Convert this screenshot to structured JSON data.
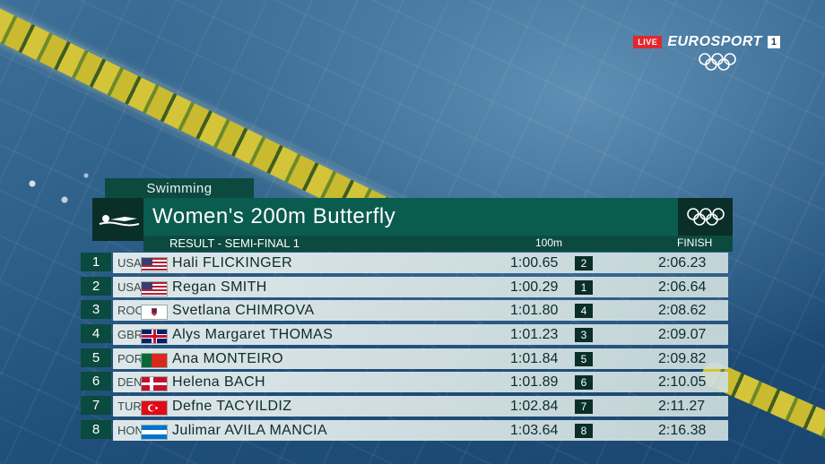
{
  "broadcast": {
    "live_label": "LIVE",
    "brand": "EUROSPORT",
    "channel": "1"
  },
  "graphic": {
    "category": "Swimming",
    "event_title": "Women's 200m Butterfly",
    "result_label": "RESULT - SEMI-FINAL 1",
    "col_split": "100m",
    "col_finish": "FINISH"
  },
  "results": [
    {
      "rank": "1",
      "noc": "USA",
      "flag": "usa",
      "name": "Hali FLICKINGER",
      "split": "1:00.65",
      "split_rank": "2",
      "finish": "2:06.23"
    },
    {
      "rank": "2",
      "noc": "USA",
      "flag": "usa",
      "name": "Regan SMITH",
      "split": "1:00.29",
      "split_rank": "1",
      "finish": "2:06.64"
    },
    {
      "rank": "3",
      "noc": "ROC",
      "flag": "roc",
      "name": "Svetlana CHIMROVA",
      "split": "1:01.80",
      "split_rank": "4",
      "finish": "2:08.62"
    },
    {
      "rank": "4",
      "noc": "GBR",
      "flag": "gbr",
      "name": "Alys Margaret THOMAS",
      "split": "1:01.23",
      "split_rank": "3",
      "finish": "2:09.07"
    },
    {
      "rank": "5",
      "noc": "POR",
      "flag": "por",
      "name": "Ana MONTEIRO",
      "split": "1:01.84",
      "split_rank": "5",
      "finish": "2:09.82"
    },
    {
      "rank": "6",
      "noc": "DEN",
      "flag": "den",
      "name": "Helena BACH",
      "split": "1:01.89",
      "split_rank": "6",
      "finish": "2:10.05"
    },
    {
      "rank": "7",
      "noc": "TUR",
      "flag": "tur",
      "name": "Defne TACYILDIZ",
      "split": "1:02.84",
      "split_rank": "7",
      "finish": "2:11.27"
    },
    {
      "rank": "8",
      "noc": "HON",
      "flag": "hon",
      "name": "Julimar AVILA MANCIA",
      "split": "1:03.64",
      "split_rank": "8",
      "finish": "2:16.38"
    }
  ],
  "icons": {
    "swimmer": "swimmer-icon",
    "olympic_rings": "olympic-rings-icon"
  },
  "colors": {
    "panel_green": "#0a5c4f",
    "panel_dark": "#0a2e28",
    "live_red": "#e3262f"
  }
}
